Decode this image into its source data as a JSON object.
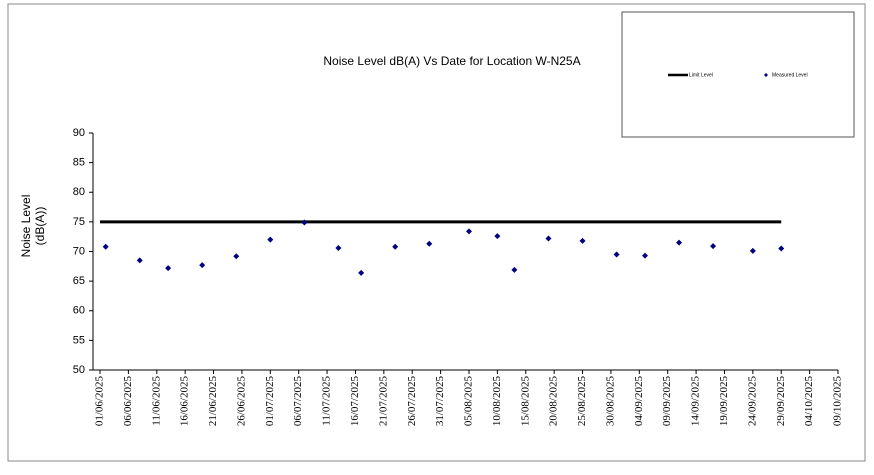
{
  "chart_data": {
    "type": "scatter",
    "title": "Noise Level dB(A) Vs Date for Location W-N25A",
    "ylabel": [
      "Noise Level",
      "(dB(A))"
    ],
    "xlim": [
      "01/06/2025",
      "09/10/2025"
    ],
    "xticks": [
      "01/06/2025",
      "06/06/2025",
      "11/06/2025",
      "16/06/2025",
      "21/06/2025",
      "26/06/2025",
      "01/07/2025",
      "06/07/2025",
      "11/07/2025",
      "16/07/2025",
      "21/07/2025",
      "26/07/2025",
      "31/07/2025",
      "05/08/2025",
      "10/08/2025",
      "15/08/2025",
      "20/08/2025",
      "25/08/2025",
      "30/08/2025",
      "04/09/2025",
      "09/09/2025",
      "14/09/2025",
      "19/09/2025",
      "24/09/2025",
      "29/09/2025",
      "04/10/2025",
      "09/10/2025"
    ],
    "ylim": [
      50,
      90
    ],
    "yticks": [
      50,
      55,
      60,
      65,
      70,
      75,
      80,
      85,
      90
    ],
    "legend": "top-right",
    "series": [
      {
        "name": "Limit Level",
        "color": "#000000",
        "mode": "line",
        "x": [
          "01/06/2025",
          "29/09/2025"
        ],
        "values": [
          75,
          75
        ]
      },
      {
        "name": "Measured Level",
        "color": "#000080",
        "mode": "markers",
        "x": [
          "02/06/2025",
          "08/06/2025",
          "13/06/2025",
          "19/06/2025",
          "25/06/2025",
          "01/07/2025",
          "07/07/2025",
          "13/07/2025",
          "17/07/2025",
          "23/07/2025",
          "29/07/2025",
          "05/08/2025",
          "10/08/2025",
          "13/08/2025",
          "19/08/2025",
          "25/08/2025",
          "31/08/2025",
          "05/09/2025",
          "11/09/2025",
          "17/09/2025",
          "24/09/2025",
          "29/09/2025"
        ],
        "values": [
          70.8,
          68.5,
          67.2,
          67.7,
          69.2,
          72.0,
          74.9,
          70.6,
          66.4,
          70.8,
          71.3,
          73.4,
          72.6,
          66.9,
          72.2,
          71.8,
          69.5,
          69.3,
          71.5,
          70.9,
          70.1,
          70.5
        ]
      }
    ]
  }
}
